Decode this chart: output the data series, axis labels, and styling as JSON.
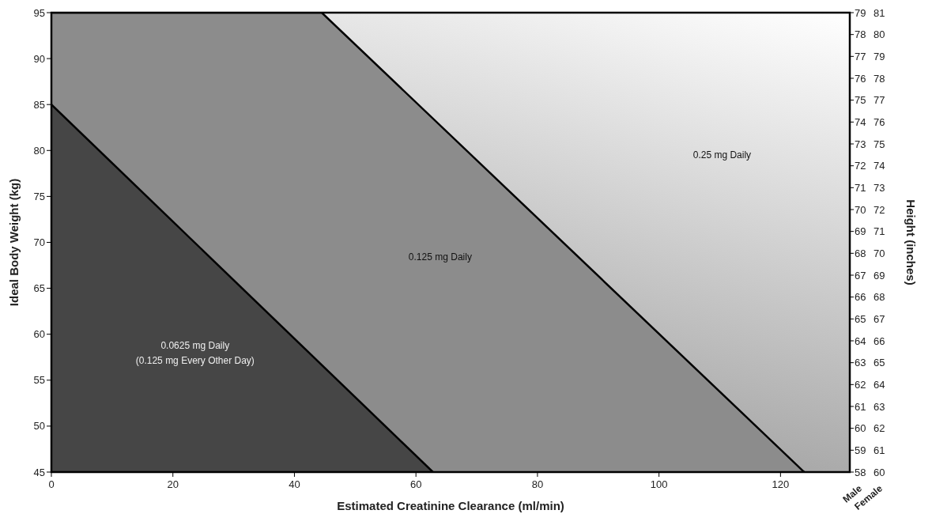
{
  "chart_data": {
    "type": "area",
    "xlabel": "Estimated Creatinine Clearance (ml/min)",
    "ylabel": "Ideal Body Weight (kg)",
    "y2label": "Height (inches)",
    "xlim": [
      0,
      131.4
    ],
    "xticks": [
      0,
      20,
      40,
      60,
      80,
      100,
      120
    ],
    "ylim": [
      45,
      95
    ],
    "yticks": [
      45,
      50,
      55,
      60,
      65,
      70,
      75,
      80,
      85,
      90,
      95
    ],
    "y2lim": [
      58,
      79
    ],
    "y2ticks": [
      58,
      59,
      60,
      61,
      62,
      63,
      64,
      65,
      66,
      67,
      68,
      69,
      70,
      71,
      72,
      73,
      74,
      75,
      76,
      77,
      78,
      79
    ],
    "y3lim": [
      60,
      81
    ],
    "y3ticks": [
      60,
      61,
      62,
      63,
      64,
      65,
      66,
      67,
      68,
      69,
      70,
      71,
      72,
      73,
      74,
      75,
      76,
      77,
      78,
      79,
      80,
      81
    ],
    "series": [
      {
        "x": [
          0,
          44.5,
          123.9
        ],
        "values": [
          95,
          95,
          45
        ],
        "color": "#8c8c8c"
      },
      {
        "x": [
          0,
          62.8
        ],
        "values": [
          85,
          45
        ],
        "color": "#464646"
      }
    ],
    "annotations": [
      "Male",
      "Female",
      "0.0625 mg Daily",
      "(0.125 mg Every Other Day)",
      "0.125 mg Daily",
      "0.25 mg Daily"
    ]
  }
}
